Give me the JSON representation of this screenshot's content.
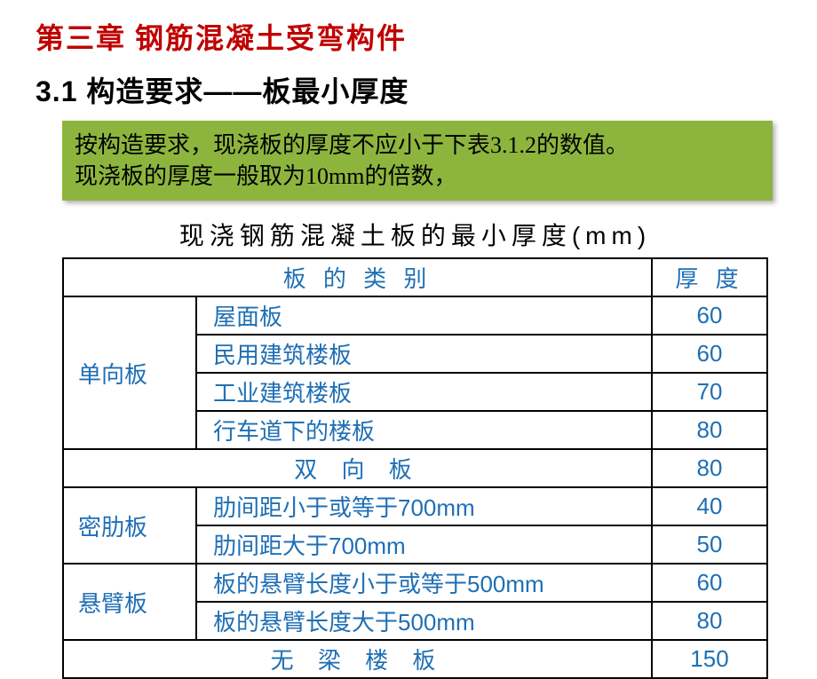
{
  "chapter_title": "第三章  钢筋混凝土受弯构件",
  "section_title": "3.1 构造要求——板最小厚度",
  "note_line1": "按构造要求，现浇板的厚度不应小于下表3.1.2的数值。",
  "note_line2": "现浇板的厚度一般取为10mm的倍数，",
  "table": {
    "caption": "现浇钢筋混凝土板的最小厚度(mm)",
    "header_category": "板 的 类 别",
    "header_thickness": "厚  度",
    "colors": {
      "text_blue": "#1f6fb5",
      "border": "#000000",
      "note_bg": "#8db53e",
      "chapter_red": "#c00000"
    },
    "rows": [
      {
        "cat": "单向板",
        "sub": "屋面板",
        "val": "60",
        "rowspan": 4
      },
      {
        "sub": "民用建筑楼板",
        "val": "60"
      },
      {
        "sub": "工业建筑楼板",
        "val": "70"
      },
      {
        "sub": "行车道下的楼板",
        "val": "80"
      },
      {
        "full": "双  向  板",
        "val": "80"
      },
      {
        "cat": "密肋板",
        "sub": "肋间距小于或等于700mm",
        "val": "40",
        "rowspan": 2
      },
      {
        "sub": "肋间距大于700mm",
        "val": "50"
      },
      {
        "cat": "悬臂板",
        "sub": "板的悬臂长度小于或等于500mm",
        "val": "60",
        "rowspan": 2
      },
      {
        "sub": "板的悬臂长度大于500mm",
        "val": "80"
      },
      {
        "full": "无  梁  楼  板",
        "val": "150"
      }
    ]
  }
}
